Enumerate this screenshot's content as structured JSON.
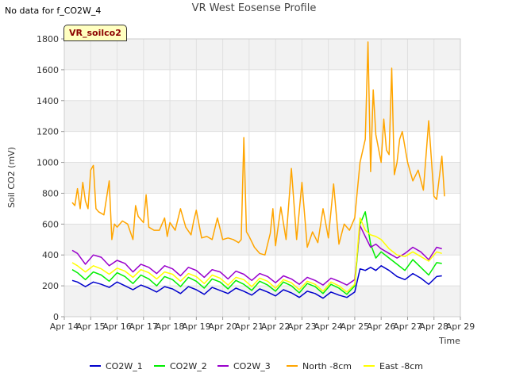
{
  "header": {
    "no_data_note": "No data for f_CO2W_4",
    "badge_label": "VR_soilco2"
  },
  "chart_data": {
    "type": "line",
    "title": "VR West Eosense Profile",
    "xlabel": "Time",
    "ylabel": "Soil CO2 (mV)",
    "xlim": [
      14,
      29
    ],
    "ylim": [
      0,
      1800
    ],
    "x_ticks": [
      {
        "v": 14,
        "label": "Apr 14"
      },
      {
        "v": 15,
        "label": "Apr 15"
      },
      {
        "v": 16,
        "label": "Apr 16"
      },
      {
        "v": 17,
        "label": "Apr 17"
      },
      {
        "v": 18,
        "label": "Apr 18"
      },
      {
        "v": 19,
        "label": "Apr 19"
      },
      {
        "v": 20,
        "label": "Apr 20"
      },
      {
        "v": 21,
        "label": "Apr 21"
      },
      {
        "v": 22,
        "label": "Apr 22"
      },
      {
        "v": 23,
        "label": "Apr 23"
      },
      {
        "v": 24,
        "label": "Apr 24"
      },
      {
        "v": 25,
        "label": "Apr 25"
      },
      {
        "v": 26,
        "label": "Apr 26"
      },
      {
        "v": 27,
        "label": "Apr 27"
      },
      {
        "v": 28,
        "label": "Apr 28"
      },
      {
        "v": 29,
        "label": "Apr 29"
      }
    ],
    "y_ticks": [
      {
        "v": 0,
        "label": "0"
      },
      {
        "v": 200,
        "label": "200"
      },
      {
        "v": 400,
        "label": "400"
      },
      {
        "v": 600,
        "label": "600"
      },
      {
        "v": 800,
        "label": "800"
      },
      {
        "v": 1000,
        "label": "1000"
      },
      {
        "v": 1200,
        "label": "1200"
      },
      {
        "v": 1400,
        "label": "1400"
      },
      {
        "v": 1600,
        "label": "1600"
      },
      {
        "v": 1800,
        "label": "1800"
      }
    ],
    "grid": true,
    "legend_position": "bottom",
    "series": [
      {
        "name": "CO2W_1",
        "color": "#0000cc",
        "x": [
          14.3,
          14.5,
          14.8,
          15.1,
          15.4,
          15.7,
          16.0,
          16.3,
          16.6,
          16.9,
          17.2,
          17.5,
          17.8,
          18.1,
          18.4,
          18.7,
          19.0,
          19.3,
          19.6,
          19.9,
          20.2,
          20.5,
          20.8,
          21.1,
          21.4,
          21.7,
          22.0,
          22.3,
          22.6,
          22.9,
          23.2,
          23.5,
          23.8,
          24.1,
          24.4,
          24.7,
          25.0,
          25.2,
          25.4,
          25.6,
          25.8,
          26.0,
          26.3,
          26.6,
          26.9,
          27.2,
          27.5,
          27.8,
          28.1,
          28.3
        ],
        "y": [
          235,
          225,
          195,
          225,
          210,
          190,
          225,
          200,
          175,
          205,
          185,
          160,
          195,
          180,
          150,
          195,
          175,
          145,
          190,
          170,
          150,
          185,
          165,
          140,
          180,
          160,
          135,
          175,
          155,
          125,
          165,
          150,
          120,
          160,
          140,
          125,
          160,
          310,
          300,
          320,
          300,
          330,
          300,
          260,
          240,
          280,
          250,
          210,
          260,
          265
        ]
      },
      {
        "name": "CO2W_2",
        "color": "#00ee00",
        "x": [
          14.3,
          14.5,
          14.8,
          15.1,
          15.4,
          15.7,
          16.0,
          16.3,
          16.6,
          16.9,
          17.2,
          17.5,
          17.8,
          18.1,
          18.4,
          18.7,
          19.0,
          19.3,
          19.6,
          19.9,
          20.2,
          20.5,
          20.8,
          21.1,
          21.4,
          21.7,
          22.0,
          22.3,
          22.6,
          22.9,
          23.2,
          23.5,
          23.8,
          24.1,
          24.4,
          24.7,
          25.0,
          25.2,
          25.4,
          25.6,
          25.8,
          26.0,
          26.3,
          26.6,
          26.9,
          27.2,
          27.5,
          27.8,
          28.1,
          28.3
        ],
        "y": [
          305,
          285,
          240,
          290,
          270,
          230,
          285,
          260,
          215,
          270,
          245,
          200,
          260,
          240,
          195,
          255,
          230,
          185,
          245,
          225,
          180,
          235,
          210,
          170,
          230,
          205,
          165,
          225,
          200,
          155,
          215,
          195,
          150,
          210,
          185,
          145,
          200,
          600,
          680,
          470,
          380,
          420,
          380,
          340,
          300,
          370,
          320,
          270,
          350,
          345
        ]
      },
      {
        "name": "CO2W_3",
        "color": "#9900cc",
        "x": [
          14.3,
          14.5,
          14.8,
          15.1,
          15.4,
          15.7,
          16.0,
          16.3,
          16.6,
          16.9,
          17.2,
          17.5,
          17.8,
          18.1,
          18.4,
          18.7,
          19.0,
          19.3,
          19.6,
          19.9,
          20.2,
          20.5,
          20.8,
          21.1,
          21.4,
          21.7,
          22.0,
          22.3,
          22.6,
          22.9,
          23.2,
          23.5,
          23.8,
          24.1,
          24.4,
          24.7,
          25.0,
          25.2,
          25.4,
          25.6,
          25.8,
          26.0,
          26.3,
          26.6,
          26.9,
          27.2,
          27.5,
          27.8,
          28.1,
          28.3
        ],
        "y": [
          430,
          410,
          340,
          400,
          385,
          330,
          365,
          345,
          290,
          340,
          320,
          280,
          330,
          310,
          265,
          320,
          300,
          255,
          305,
          290,
          245,
          295,
          275,
          235,
          280,
          260,
          220,
          265,
          245,
          210,
          255,
          235,
          205,
          250,
          230,
          205,
          240,
          590,
          520,
          450,
          470,
          440,
          410,
          380,
          410,
          450,
          420,
          370,
          450,
          440
        ]
      },
      {
        "name": "North -8cm",
        "color": "#ffa500",
        "x": [
          14.3,
          14.4,
          14.5,
          14.6,
          14.7,
          14.8,
          14.9,
          15.0,
          15.1,
          15.2,
          15.3,
          15.5,
          15.7,
          15.8,
          15.9,
          16.0,
          16.2,
          16.4,
          16.6,
          16.7,
          16.8,
          17.0,
          17.1,
          17.2,
          17.4,
          17.6,
          17.8,
          17.9,
          18.0,
          18.2,
          18.4,
          18.6,
          18.8,
          18.9,
          19.0,
          19.2,
          19.4,
          19.6,
          19.8,
          20.0,
          20.2,
          20.4,
          20.6,
          20.7,
          20.8,
          20.9,
          21.0,
          21.2,
          21.4,
          21.6,
          21.8,
          21.9,
          22.0,
          22.2,
          22.4,
          22.6,
          22.8,
          23.0,
          23.2,
          23.4,
          23.6,
          23.8,
          24.0,
          24.2,
          24.4,
          24.6,
          24.8,
          25.0,
          25.2,
          25.4,
          25.5,
          25.6,
          25.7,
          25.8,
          26.0,
          26.1,
          26.2,
          26.3,
          26.4,
          26.5,
          26.6,
          26.7,
          26.8,
          27.0,
          27.2,
          27.4,
          27.6,
          27.8,
          28.0,
          28.1,
          28.2,
          28.3,
          28.4
        ],
        "y": [
          740,
          720,
          830,
          700,
          870,
          750,
          700,
          950,
          980,
          700,
          680,
          660,
          880,
          500,
          600,
          580,
          620,
          600,
          500,
          720,
          650,
          610,
          790,
          580,
          560,
          560,
          640,
          520,
          610,
          560,
          700,
          580,
          530,
          620,
          690,
          510,
          520,
          500,
          640,
          500,
          510,
          500,
          480,
          500,
          1160,
          550,
          520,
          450,
          410,
          400,
          540,
          700,
          460,
          710,
          500,
          960,
          500,
          870,
          450,
          550,
          480,
          700,
          510,
          860,
          470,
          600,
          560,
          640,
          1000,
          1150,
          1780,
          940,
          1470,
          1180,
          1000,
          1280,
          1080,
          1050,
          1610,
          920,
          1000,
          1150,
          1200,
          1000,
          880,
          950,
          820,
          1270,
          780,
          760,
          900,
          1040,
          780
        ]
      },
      {
        "name": "East -8cm",
        "color": "#ffff00",
        "x": [
          14.3,
          14.5,
          14.8,
          15.1,
          15.4,
          15.7,
          16.0,
          16.3,
          16.6,
          16.9,
          17.2,
          17.5,
          17.8,
          18.1,
          18.4,
          18.7,
          19.0,
          19.3,
          19.6,
          19.9,
          20.2,
          20.5,
          20.8,
          21.1,
          21.4,
          21.7,
          22.0,
          22.3,
          22.6,
          22.9,
          23.2,
          23.5,
          23.8,
          24.1,
          24.4,
          24.7,
          25.0,
          25.2,
          25.4,
          25.6,
          25.8,
          26.0,
          26.3,
          26.6,
          26.9,
          27.2,
          27.5,
          27.8,
          28.1,
          28.3
        ],
        "y": [
          350,
          330,
          290,
          330,
          310,
          275,
          315,
          295,
          255,
          305,
          285,
          245,
          290,
          275,
          230,
          280,
          260,
          215,
          270,
          250,
          205,
          255,
          240,
          195,
          250,
          230,
          185,
          240,
          220,
          175,
          230,
          210,
          165,
          225,
          200,
          160,
          210,
          640,
          560,
          530,
          520,
          500,
          440,
          400,
          390,
          420,
          390,
          360,
          420,
          410
        ]
      }
    ]
  }
}
